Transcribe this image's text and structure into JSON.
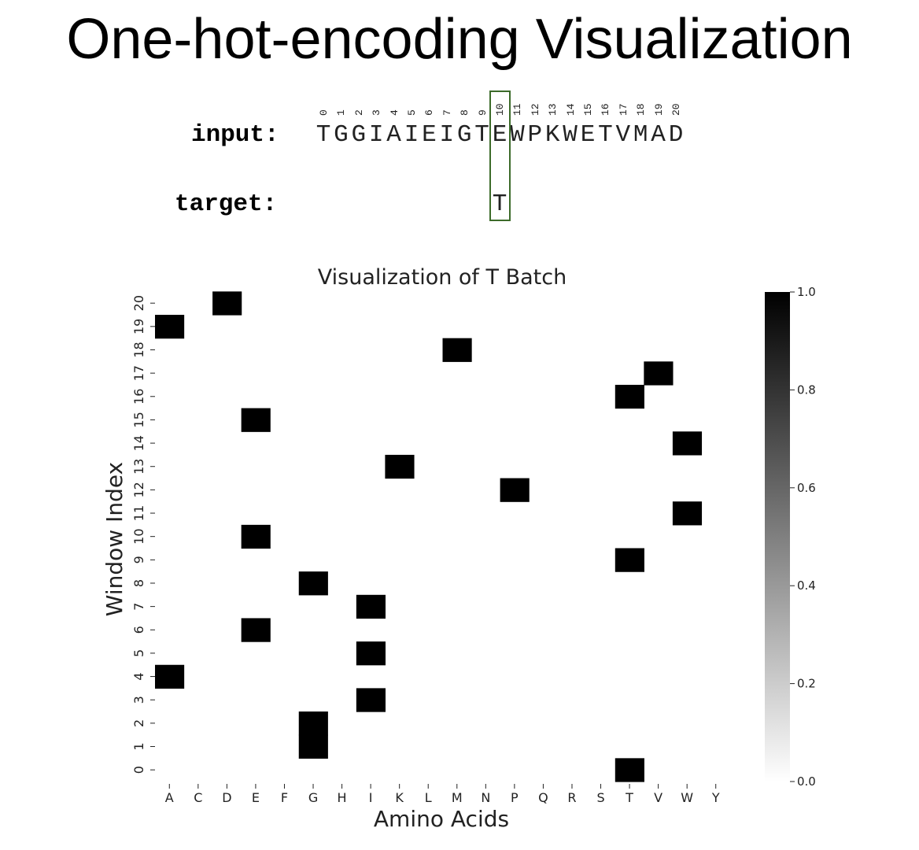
{
  "header": {
    "title": "One-hot-encoding Visualization",
    "input_label": "input:",
    "target_label": "target:",
    "sequence": "TGGIAIEIGTEWPKWETVMAD",
    "target": "T",
    "target_position": 10,
    "position_indices": [
      "0",
      "1",
      "2",
      "3",
      "4",
      "5",
      "6",
      "7",
      "8",
      "9",
      "10",
      "11",
      "12",
      "13",
      "14",
      "15",
      "16",
      "17",
      "18",
      "19",
      "20"
    ]
  },
  "chart_data": {
    "type": "heatmap",
    "title": "Visualization of T Batch",
    "xlabel": "Amino Acids",
    "ylabel": "Window Index",
    "x_categories": [
      "A",
      "C",
      "D",
      "E",
      "F",
      "G",
      "H",
      "I",
      "K",
      "L",
      "M",
      "N",
      "P",
      "Q",
      "R",
      "S",
      "T",
      "V",
      "W",
      "Y"
    ],
    "y_categories": [
      "0",
      "1",
      "2",
      "3",
      "4",
      "5",
      "6",
      "7",
      "8",
      "9",
      "10",
      "11",
      "12",
      "13",
      "14",
      "15",
      "16",
      "17",
      "18",
      "19",
      "20"
    ],
    "cells": [
      {
        "row": 0,
        "col": "T",
        "value": 1
      },
      {
        "row": 1,
        "col": "G",
        "value": 1
      },
      {
        "row": 2,
        "col": "G",
        "value": 1
      },
      {
        "row": 3,
        "col": "I",
        "value": 1
      },
      {
        "row": 4,
        "col": "A",
        "value": 1
      },
      {
        "row": 5,
        "col": "I",
        "value": 1
      },
      {
        "row": 6,
        "col": "E",
        "value": 1
      },
      {
        "row": 7,
        "col": "I",
        "value": 1
      },
      {
        "row": 8,
        "col": "G",
        "value": 1
      },
      {
        "row": 9,
        "col": "T",
        "value": 1
      },
      {
        "row": 10,
        "col": "E",
        "value": 1
      },
      {
        "row": 11,
        "col": "W",
        "value": 1
      },
      {
        "row": 12,
        "col": "P",
        "value": 1
      },
      {
        "row": 13,
        "col": "K",
        "value": 1
      },
      {
        "row": 14,
        "col": "W",
        "value": 1
      },
      {
        "row": 15,
        "col": "E",
        "value": 1
      },
      {
        "row": 16,
        "col": "T",
        "value": 1
      },
      {
        "row": 17,
        "col": "V",
        "value": 1
      },
      {
        "row": 18,
        "col": "M",
        "value": 1
      },
      {
        "row": 19,
        "col": "A",
        "value": 1
      },
      {
        "row": 20,
        "col": "D",
        "value": 1
      }
    ],
    "colorbar": {
      "range": [
        0,
        1
      ],
      "ticks": [
        "0.0",
        "0.2",
        "0.4",
        "0.6",
        "0.8",
        "1.0"
      ],
      "colors": [
        "#ffffff",
        "#000000"
      ]
    },
    "colors": {
      "highlight": "#3c6b2a"
    }
  }
}
